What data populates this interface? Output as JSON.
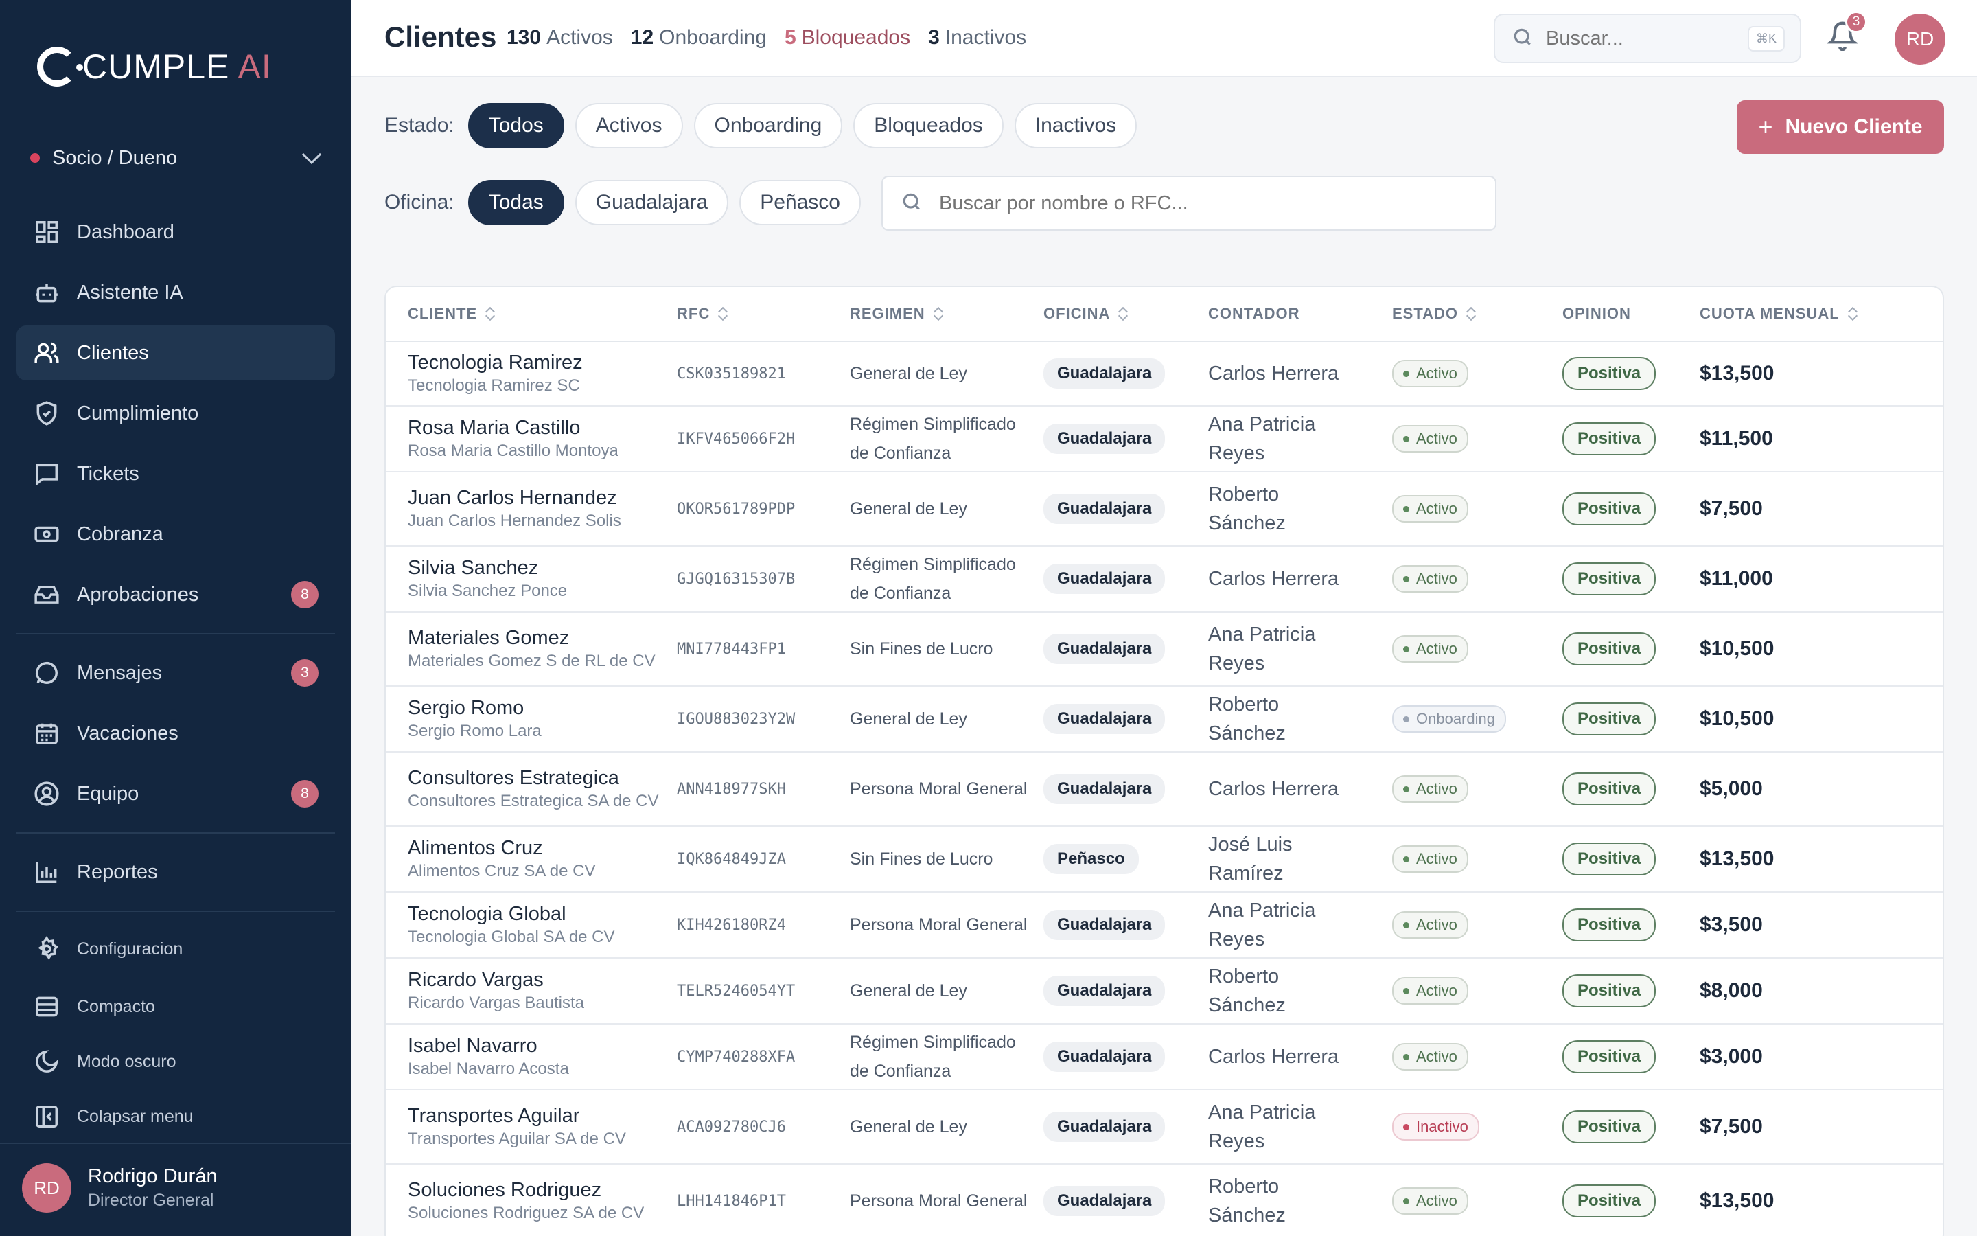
{
  "brand": {
    "name_main": "CUMPLE",
    "name_accent": "AI"
  },
  "role_selector": {
    "label": "Socio / Dueno"
  },
  "sidebar": {
    "items": [
      {
        "label": "Dashboard",
        "icon": "dashboard-icon"
      },
      {
        "label": "Asistente IA",
        "icon": "robot-icon"
      },
      {
        "label": "Clientes",
        "icon": "users-icon",
        "active": true
      },
      {
        "label": "Cumplimiento",
        "icon": "shield-check-icon"
      },
      {
        "label": "Tickets",
        "icon": "message-square-icon"
      },
      {
        "label": "Cobranza",
        "icon": "banknote-icon"
      },
      {
        "label": "Aprobaciones",
        "icon": "inbox-icon",
        "badge": "8"
      },
      {
        "label": "Mensajes",
        "icon": "chat-bubble-icon",
        "badge": "3"
      },
      {
        "label": "Vacaciones",
        "icon": "calendar-icon"
      },
      {
        "label": "Equipo",
        "icon": "user-circle-icon",
        "badge": "8"
      },
      {
        "label": "Reportes",
        "icon": "bar-chart-icon"
      }
    ],
    "footer_items": [
      {
        "label": "Configuracion",
        "icon": "gear-icon"
      },
      {
        "label": "Compacto",
        "icon": "rows-icon"
      },
      {
        "label": "Modo oscuro",
        "icon": "moon-icon"
      },
      {
        "label": "Colapsar menu",
        "icon": "collapse-icon"
      }
    ],
    "user": {
      "initials": "RD",
      "name": "Rodrigo Durán",
      "title": "Director General"
    }
  },
  "header": {
    "title": "Clientes",
    "counts": [
      {
        "value": "130",
        "label": "Activos"
      },
      {
        "value": "12",
        "label": "Onboarding"
      },
      {
        "value": "5",
        "label": "Bloqueados"
      },
      {
        "value": "3",
        "label": "Inactivos"
      }
    ],
    "search_placeholder": "Buscar...",
    "shortcut": "⌘K",
    "notifications": "3",
    "avatar_initials": "RD"
  },
  "filters": {
    "estado_label": "Estado:",
    "estado_options": [
      "Todos",
      "Activos",
      "Onboarding",
      "Bloqueados",
      "Inactivos"
    ],
    "estado_selected": "Todos",
    "oficina_label": "Oficina:",
    "oficina_options": [
      "Todas",
      "Guadalajara",
      "Peñasco"
    ],
    "oficina_selected": "Todas",
    "search_placeholder": "Buscar por nombre o RFC...",
    "new_button": "Nuevo Cliente"
  },
  "table": {
    "columns": [
      "CLIENTE",
      "RFC",
      "REGIMEN",
      "OFICINA",
      "CONTADOR",
      "ESTADO",
      "OPINION",
      "CUOTA MENSUAL"
    ],
    "rows": [
      {
        "name": "Tecnologia Ramirez",
        "legal": "Tecnologia Ramirez SC",
        "rfc": "CSK035189821",
        "regimen": "General de Ley",
        "oficina": "Guadalajara",
        "contador": "Carlos Herrera",
        "estado": "Activo",
        "opinion": "Positiva",
        "cuota": "$13,500"
      },
      {
        "name": "Rosa Maria Castillo",
        "legal": "Rosa Maria Castillo Montoya",
        "rfc": "IKFV465066F2H",
        "regimen": "Régimen Simplificado de Confianza",
        "oficina": "Guadalajara",
        "contador": "Ana Patricia Reyes",
        "estado": "Activo",
        "opinion": "Positiva",
        "cuota": "$11,500"
      },
      {
        "name": "Juan Carlos Hernandez",
        "legal": "Juan Carlos Hernandez Solis",
        "rfc": "OKOR561789PDP",
        "regimen": "General de Ley",
        "oficina": "Guadalajara",
        "contador": "Roberto Sánchez",
        "estado": "Activo",
        "opinion": "Positiva",
        "cuota": "$7,500"
      },
      {
        "name": "Silvia Sanchez",
        "legal": "Silvia Sanchez Ponce",
        "rfc": "GJGQ16315307B",
        "regimen": "Régimen Simplificado de Confianza",
        "oficina": "Guadalajara",
        "contador": "Carlos Herrera",
        "estado": "Activo",
        "opinion": "Positiva",
        "cuota": "$11,000"
      },
      {
        "name": "Materiales Gomez",
        "legal": "Materiales Gomez S de RL de CV",
        "rfc": "MNI778443FP1",
        "regimen": "Sin Fines de Lucro",
        "oficina": "Guadalajara",
        "contador": "Ana Patricia Reyes",
        "estado": "Activo",
        "opinion": "Positiva",
        "cuota": "$10,500"
      },
      {
        "name": "Sergio Romo",
        "legal": "Sergio Romo Lara",
        "rfc": "IGOU883023Y2W",
        "regimen": "General de Ley",
        "oficina": "Guadalajara",
        "contador": "Roberto Sánchez",
        "estado": "Onboarding",
        "opinion": "Positiva",
        "cuota": "$10,500"
      },
      {
        "name": "Consultores Estrategica",
        "legal": "Consultores Estrategica SA de CV",
        "rfc": "ANN418977SKH",
        "regimen": "Persona Moral General",
        "oficina": "Guadalajara",
        "contador": "Carlos Herrera",
        "estado": "Activo",
        "opinion": "Positiva",
        "cuota": "$5,000"
      },
      {
        "name": "Alimentos Cruz",
        "legal": "Alimentos Cruz SA de CV",
        "rfc": "IQK864849JZA",
        "regimen": "Sin Fines de Lucro",
        "oficina": "Peñasco",
        "contador": "José Luis Ramírez",
        "estado": "Activo",
        "opinion": "Positiva",
        "cuota": "$13,500"
      },
      {
        "name": "Tecnologia Global",
        "legal": "Tecnologia Global SA de CV",
        "rfc": "KIH426180RZ4",
        "regimen": "Persona Moral General",
        "oficina": "Guadalajara",
        "contador": "Ana Patricia Reyes",
        "estado": "Activo",
        "opinion": "Positiva",
        "cuota": "$3,500"
      },
      {
        "name": "Ricardo Vargas",
        "legal": "Ricardo Vargas Bautista",
        "rfc": "TELR5246054YT",
        "regimen": "General de Ley",
        "oficina": "Guadalajara",
        "contador": "Roberto Sánchez",
        "estado": "Activo",
        "opinion": "Positiva",
        "cuota": "$8,000"
      },
      {
        "name": "Isabel Navarro",
        "legal": "Isabel Navarro Acosta",
        "rfc": "CYMP740288XFA",
        "regimen": "Régimen Simplificado de Confianza",
        "oficina": "Guadalajara",
        "contador": "Carlos Herrera",
        "estado": "Activo",
        "opinion": "Positiva",
        "cuota": "$3,000"
      },
      {
        "name": "Transportes Aguilar",
        "legal": "Transportes Aguilar SA de CV",
        "rfc": "ACA092780CJ6",
        "regimen": "General de Ley",
        "oficina": "Guadalajara",
        "contador": "Ana Patricia Reyes",
        "estado": "Inactivo",
        "opinion": "Positiva",
        "cuota": "$7,500"
      },
      {
        "name": "Soluciones Rodriguez",
        "legal": "Soluciones Rodriguez SA de CV",
        "rfc": "LHH141846P1T",
        "regimen": "Persona Moral General",
        "oficina": "Guadalajara",
        "contador": "Roberto Sánchez",
        "estado": "Activo",
        "opinion": "Positiva",
        "cuota": "$13,500"
      }
    ]
  }
}
